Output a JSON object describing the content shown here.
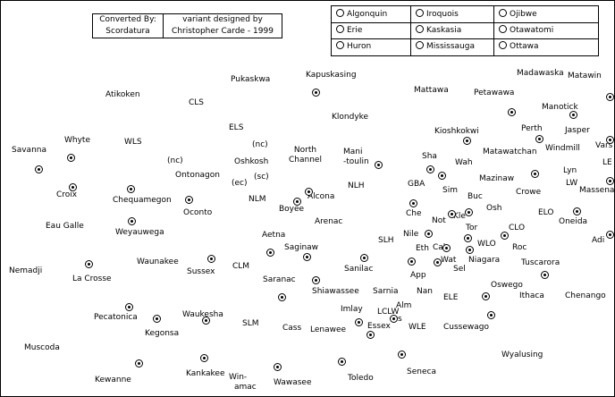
{
  "credits": {
    "left": [
      "Converted By:",
      "Scordatura"
    ],
    "right": [
      "variant designed by",
      "Christopher Carde - 1999"
    ]
  },
  "legend": [
    [
      "Algonquin",
      "Iroquois",
      "Ojibwe"
    ],
    [
      "Erie",
      "Kaskasia",
      "Otawatomi"
    ],
    [
      "Huron",
      "Mississauga",
      "Ottawa"
    ]
  ],
  "places": [
    "Savanna",
    "Whyte",
    "WLS",
    "Atikoken",
    "CLS",
    "Pukaskwa",
    "Kapuskasing",
    "Mattawa",
    "Madawaska",
    "Matawin",
    "Petawawa",
    "Manotick",
    "Klondyke",
    "ELS",
    "(nc)",
    "Oshkosh",
    "(sc)",
    "(ec)",
    "(nc)",
    "North Channel",
    "Mani-toulin",
    "Kioshkokwi",
    "Perth",
    "Jasper",
    "Vars",
    "Matawatchan",
    "Windmill",
    "LE",
    "Lyn",
    "LW",
    "Massena",
    "Sha",
    "Wah",
    "GBA",
    "Sim",
    "Mazinaw",
    "Crowe",
    "Croix",
    "Chequamegon",
    "Ontonagon",
    "Oconto",
    "NLM",
    "Boyee",
    "Alcona",
    "NLH",
    "Buc",
    "Osh",
    "Che",
    "Kle",
    "Not",
    "ELO",
    "Oneida",
    "Eau Galle",
    "Weyauwega",
    "Arenac",
    "Nile",
    "Tor",
    "CLO",
    "Adi",
    "Aetna",
    "SLH",
    "WLO",
    "Roc",
    "Saginaw",
    "Waunakee",
    "Eth",
    "Cal",
    "Wat",
    "Niagara",
    "Tuscarora",
    "Nemadji",
    "Sussex",
    "CLM",
    "Sanilac",
    "App",
    "Sel",
    "La Crosse",
    "Saranac",
    "Oswego",
    "Shiawassee",
    "Sarnia",
    "Nan",
    "ELE",
    "Ithaca",
    "Chenango",
    "Alm",
    "LCLW",
    "s",
    "Imlay",
    "Pecatonica",
    "Waukesha",
    "SLM",
    "Essex",
    "WLE",
    "Cussewago",
    "Cass",
    "Lenawee",
    "Kegonsa",
    "Muscoda",
    "Wyalusing",
    "Seneca",
    "Kewanne",
    "Kankakee",
    "Win-amac",
    "Wawasee",
    "Toledo"
  ]
}
